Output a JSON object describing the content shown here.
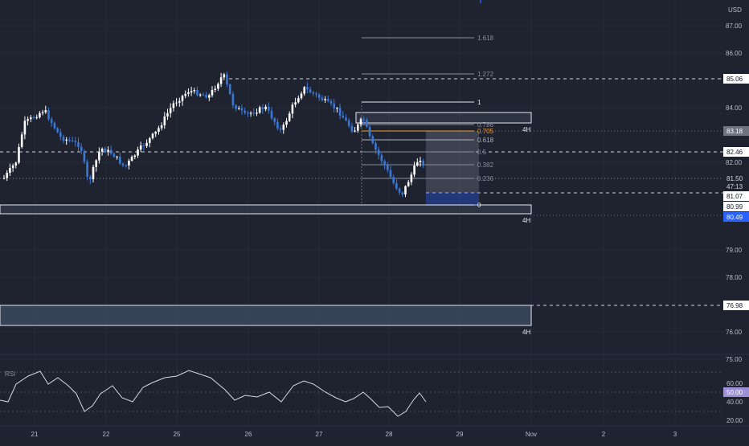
{
  "currency": "USD",
  "price_axis": {
    "ticks": [
      "87.00",
      "86.00",
      "84.00",
      "82.00",
      "79.00",
      "78.00",
      "76.00",
      "75.00"
    ],
    "labels": [
      {
        "text": "85.06",
        "style": "white"
      },
      {
        "text": "83.18",
        "style": "gray"
      },
      {
        "text": "82.46",
        "style": "white"
      },
      {
        "text": "81.50",
        "style": "dark"
      },
      {
        "text": "47:13",
        "style": "dark"
      },
      {
        "text": "81.07",
        "style": "white"
      },
      {
        "text": "80.99",
        "style": "white"
      },
      {
        "text": "80.49",
        "style": "blue"
      },
      {
        "text": "76.98",
        "style": "white"
      }
    ]
  },
  "rsi_axis": {
    "ticks": [
      "60.00",
      "40.00",
      "20.00"
    ],
    "current": "50.00",
    "label": "RSI"
  },
  "time_axis": {
    "labels": [
      "21",
      "22",
      "25",
      "26",
      "27",
      "28",
      "29",
      "Nov",
      "2",
      "3"
    ]
  },
  "fib_levels": [
    {
      "text": "1.618",
      "color": "#8a8f9c"
    },
    {
      "text": "1.272",
      "color": "#8a8f9c"
    },
    {
      "text": "1",
      "color": "#e6e8ee"
    },
    {
      "text": "0.786",
      "color": "#8a8f9c"
    },
    {
      "text": "0.705",
      "color": "#f0a030"
    },
    {
      "text": "0.618",
      "color": "#b0b4bf"
    },
    {
      "text": "0.5",
      "color": "#8a8f9c"
    },
    {
      "text": "0.382",
      "color": "#8a8f9c"
    },
    {
      "text": "0.236",
      "color": "#8a8f9c"
    },
    {
      "text": "0",
      "color": "#e6e8ee"
    }
  ],
  "zones": [
    {
      "timeframe": "4H"
    },
    {
      "timeframe": "4H"
    },
    {
      "timeframe": "4H"
    }
  ],
  "colors": {
    "background": "#1f2330",
    "up": "#ffffff",
    "down": "#3a78d8",
    "accent_blue": "#2962ff",
    "fib_orange": "#f0a030"
  },
  "chart_data": {
    "type": "candlestick",
    "symbol_currency": "USD",
    "y_range": [
      74.9,
      87.4
    ],
    "series": [
      {
        "name": "candles",
        "close_approx": [
          81.5,
          83.4,
          83.0,
          82.0,
          82.6,
          83.3,
          83.8,
          84.6,
          85.2,
          83.9,
          84.3,
          83.4,
          84.7,
          84.4,
          83.4,
          82.5,
          81.2,
          82.0,
          81.5
        ]
      },
      {
        "name": "RSI",
        "last": 50.0
      }
    ],
    "rsi_range": [
      15,
      70
    ],
    "x_labels": [
      "21",
      "22",
      "25",
      "26",
      "27",
      "28",
      "29",
      "Nov",
      "2",
      "3"
    ]
  }
}
